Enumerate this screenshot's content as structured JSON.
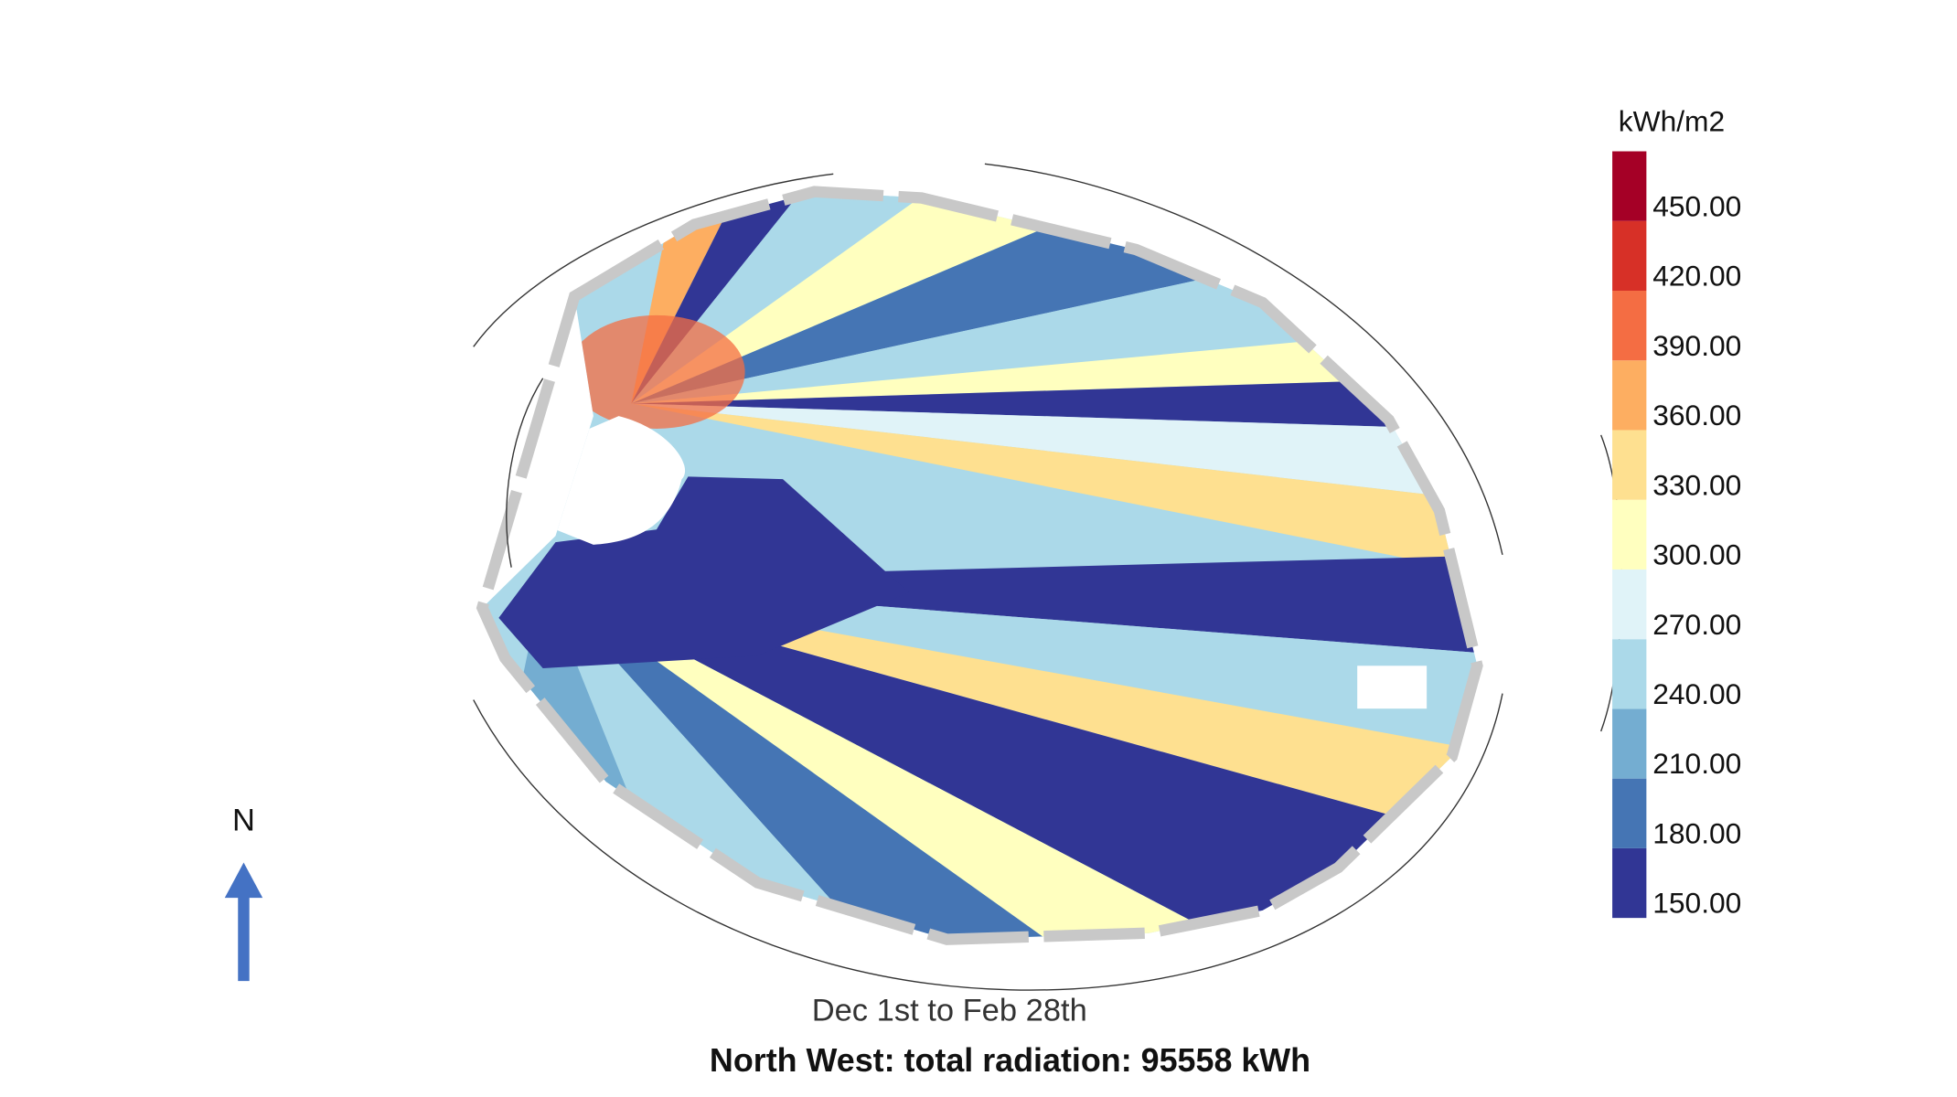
{
  "legend": {
    "title": "kWh/m2",
    "ticks": [
      {
        "value": 150,
        "label": "150.00"
      },
      {
        "value": 180,
        "label": "180.00"
      },
      {
        "value": 210,
        "label": "210.00"
      },
      {
        "value": 240,
        "label": "240.00"
      },
      {
        "value": 270,
        "label": "270.00"
      },
      {
        "value": 300,
        "label": "300.00"
      },
      {
        "value": 330,
        "label": "330.00"
      },
      {
        "value": 360,
        "label": "360.00"
      },
      {
        "value": 390,
        "label": "390.00"
      },
      {
        "value": 420,
        "label": "420.00"
      },
      {
        "value": 450,
        "label": "450.00"
      }
    ],
    "colors": [
      "#313695",
      "#4575b4",
      "#74add1",
      "#abd9e9",
      "#e0f3f8",
      "#ffffbf",
      "#fee090",
      "#fdae61",
      "#f46d43",
      "#d73027",
      "#a50026"
    ]
  },
  "north_label": "N",
  "period": "Dec 1st to Feb 28th",
  "caption": "North West: total radiation: 95558 kWh"
}
